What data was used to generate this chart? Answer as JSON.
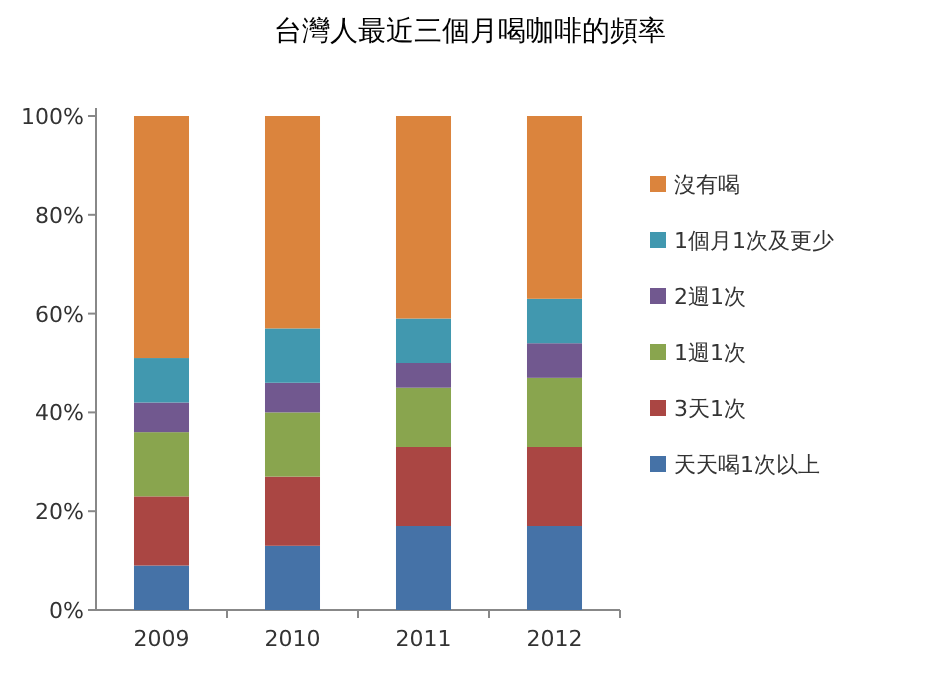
{
  "chart_data": {
    "type": "bar",
    "title": "台灣人最近三個月喝咖啡的頻率",
    "categories": [
      "2009",
      "2010",
      "2011",
      "2012"
    ],
    "stacked": true,
    "series": [
      {
        "name": "天天喝1次以上",
        "color": "#4572a7",
        "values": [
          9,
          13,
          17,
          17
        ]
      },
      {
        "name": "3天1次",
        "color": "#aa4643",
        "values": [
          14,
          14,
          16,
          16
        ]
      },
      {
        "name": "1週1次",
        "color": "#89a54e",
        "values": [
          13,
          13,
          12,
          14
        ]
      },
      {
        "name": "2週1次",
        "color": "#71588f",
        "values": [
          6,
          6,
          5,
          7
        ]
      },
      {
        "name": "1個月1次及更少",
        "color": "#4198af",
        "values": [
          9,
          11,
          9,
          9
        ]
      },
      {
        "name": "沒有喝",
        "color": "#db843d",
        "values": [
          49,
          43,
          41,
          37
        ]
      }
    ],
    "ylim": [
      0,
      100
    ],
    "yticks": [
      {
        "value": 0,
        "label": "0%"
      },
      {
        "value": 20,
        "label": "20%"
      },
      {
        "value": 40,
        "label": "40%"
      },
      {
        "value": 60,
        "label": "60%"
      },
      {
        "value": 80,
        "label": "80%"
      },
      {
        "value": 100,
        "label": "100%"
      }
    ],
    "legend": "right"
  }
}
